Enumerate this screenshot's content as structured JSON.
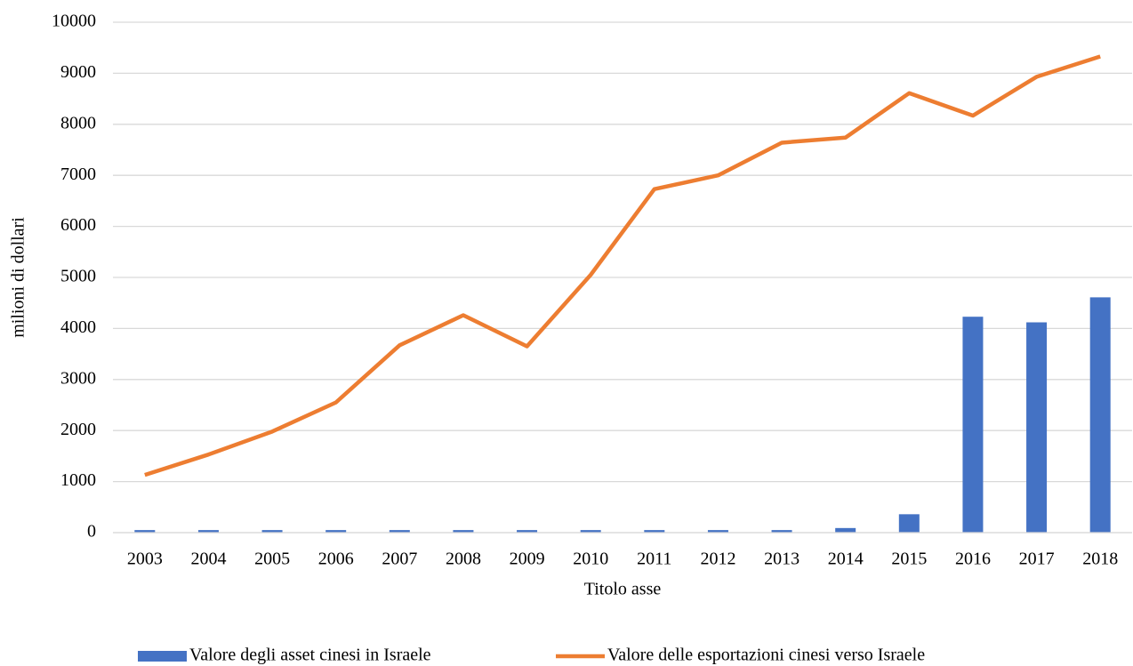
{
  "chart_data": {
    "type": "combo",
    "x_label": "Titolo asse",
    "y_label": "milioni di dollari",
    "categories": [
      "2003",
      "2004",
      "2005",
      "2006",
      "2007",
      "2008",
      "2009",
      "2010",
      "2011",
      "2012",
      "2013",
      "2014",
      "2015",
      "2016",
      "2017",
      "2018"
    ],
    "series": [
      {
        "name": "Valore degli asset cinesi in Israele",
        "type": "bar",
        "color": "#4472c4",
        "values": [
          50,
          50,
          50,
          50,
          50,
          50,
          50,
          50,
          50,
          50,
          50,
          90,
          360,
          4230,
          4120,
          4610
        ]
      },
      {
        "name": "Valore delle esportazioni cinesi verso Israele",
        "type": "line",
        "color": "#ed7d31",
        "values": [
          1130,
          1530,
          1980,
          2550,
          3670,
          4260,
          3650,
          5050,
          6730,
          7000,
          7640,
          7740,
          8610,
          8170,
          8930,
          9330
        ]
      }
    ],
    "ylim": [
      0,
      10000
    ],
    "yticks": [
      0,
      1000,
      2000,
      3000,
      4000,
      5000,
      6000,
      7000,
      8000,
      9000,
      10000
    ],
    "grid": true,
    "legend": "bottom"
  }
}
